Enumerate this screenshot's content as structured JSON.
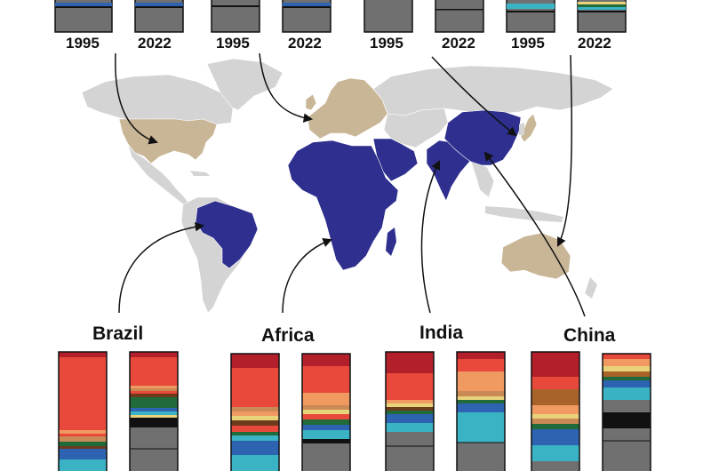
{
  "top_panels": [
    {
      "id": "usa",
      "year_a": "1995",
      "year_b": "2022"
    },
    {
      "id": "europe",
      "year_a": "1995",
      "year_b": "2022"
    },
    {
      "id": "japan",
      "year_a": "1995",
      "year_b": "2022"
    },
    {
      "id": "australia",
      "year_a": "1995",
      "year_b": "2022"
    }
  ],
  "bottom_panels": [
    {
      "id": "brazil",
      "label": "Brazil"
    },
    {
      "id": "africa",
      "label": "Africa"
    },
    {
      "id": "india",
      "label": "India"
    },
    {
      "id": "china",
      "label": "China"
    }
  ],
  "colors": {
    "highlight_blue": "#2e2f8e",
    "highlight_tan": "#c9b696",
    "land_gray": "#d4d4d4",
    "bar_gray": "#707070",
    "bar_red": "#b3202c",
    "bar_orange_red": "#e8493a",
    "bar_light_orange": "#f09a62",
    "bar_cyan": "#3ab3c4",
    "bar_blue": "#2d63b0",
    "bar_green": "#216a3a"
  }
}
